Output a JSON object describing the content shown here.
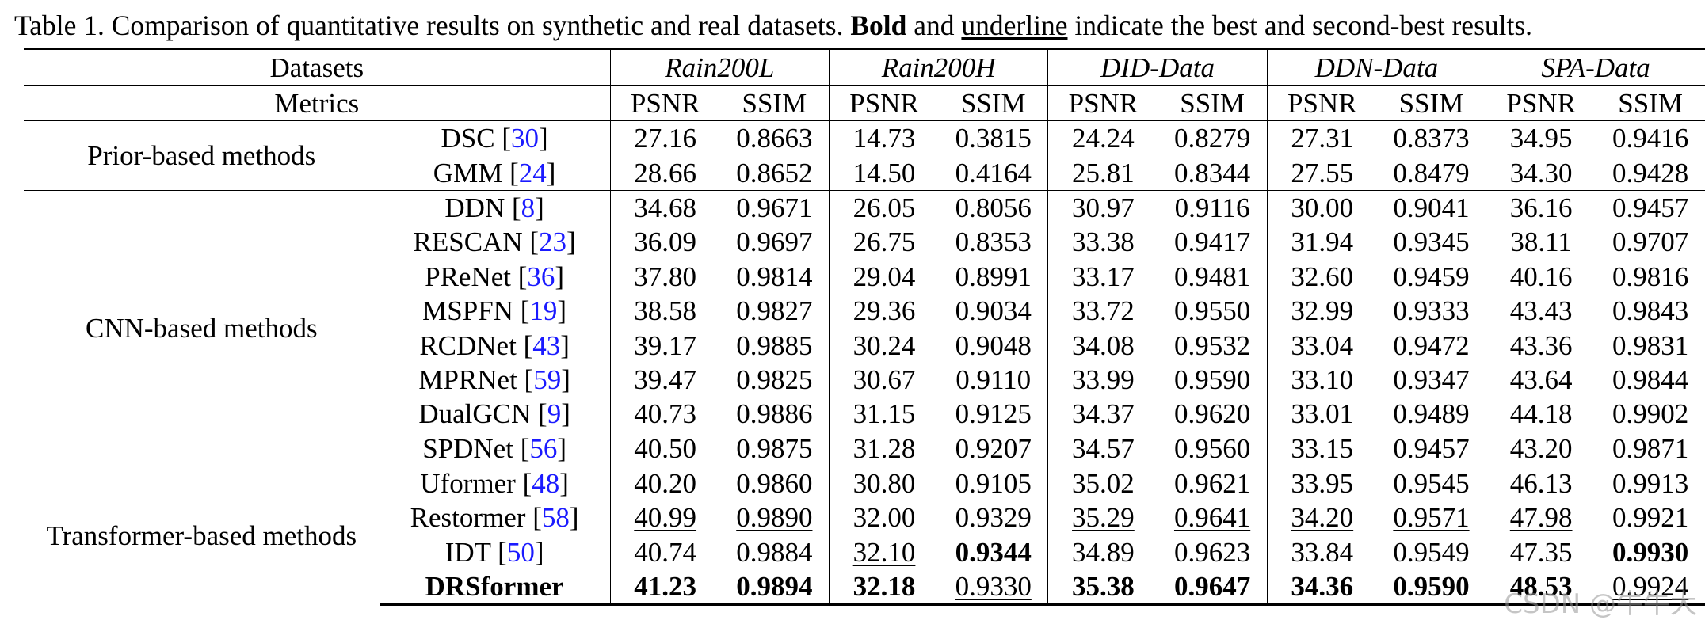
{
  "caption": {
    "prefix": "Table 1. Comparison of quantitative results on synthetic and real datasets. ",
    "bold_word": "Bold",
    "middle": " and ",
    "underline_word": "underline",
    "suffix": " indicate the best and second-best results."
  },
  "header": {
    "datasets_label": "Datasets",
    "metrics_label": "Metrics",
    "datasets": [
      "Rain200L",
      "Rain200H",
      "DID-Data",
      "DDN-Data",
      "SPA-Data"
    ],
    "metric_names": [
      "PSNR",
      "SSIM"
    ]
  },
  "groups": [
    {
      "name": "Prior-based methods",
      "methods": [
        {
          "name": "DSC",
          "ref": "30",
          "values": [
            {
              "v": "27.16"
            },
            {
              "v": "0.8663"
            },
            {
              "v": "14.73"
            },
            {
              "v": "0.3815"
            },
            {
              "v": "24.24"
            },
            {
              "v": "0.8279"
            },
            {
              "v": "27.31"
            },
            {
              "v": "0.8373"
            },
            {
              "v": "34.95"
            },
            {
              "v": "0.9416"
            }
          ]
        },
        {
          "name": "GMM",
          "ref": "24",
          "values": [
            {
              "v": "28.66"
            },
            {
              "v": "0.8652"
            },
            {
              "v": "14.50"
            },
            {
              "v": "0.4164"
            },
            {
              "v": "25.81"
            },
            {
              "v": "0.8344"
            },
            {
              "v": "27.55"
            },
            {
              "v": "0.8479"
            },
            {
              "v": "34.30"
            },
            {
              "v": "0.9428"
            }
          ]
        }
      ]
    },
    {
      "name": "CNN-based methods",
      "methods": [
        {
          "name": "DDN",
          "ref": "8",
          "values": [
            {
              "v": "34.68"
            },
            {
              "v": "0.9671"
            },
            {
              "v": "26.05"
            },
            {
              "v": "0.8056"
            },
            {
              "v": "30.97"
            },
            {
              "v": "0.9116"
            },
            {
              "v": "30.00"
            },
            {
              "v": "0.9041"
            },
            {
              "v": "36.16"
            },
            {
              "v": "0.9457"
            }
          ]
        },
        {
          "name": "RESCAN",
          "ref": "23",
          "values": [
            {
              "v": "36.09"
            },
            {
              "v": "0.9697"
            },
            {
              "v": "26.75"
            },
            {
              "v": "0.8353"
            },
            {
              "v": "33.38"
            },
            {
              "v": "0.9417"
            },
            {
              "v": "31.94"
            },
            {
              "v": "0.9345"
            },
            {
              "v": "38.11"
            },
            {
              "v": "0.9707"
            }
          ]
        },
        {
          "name": "PReNet",
          "ref": "36",
          "values": [
            {
              "v": "37.80"
            },
            {
              "v": "0.9814"
            },
            {
              "v": "29.04"
            },
            {
              "v": "0.8991"
            },
            {
              "v": "33.17"
            },
            {
              "v": "0.9481"
            },
            {
              "v": "32.60"
            },
            {
              "v": "0.9459"
            },
            {
              "v": "40.16"
            },
            {
              "v": "0.9816"
            }
          ]
        },
        {
          "name": "MSPFN",
          "ref": "19",
          "values": [
            {
              "v": "38.58"
            },
            {
              "v": "0.9827"
            },
            {
              "v": "29.36"
            },
            {
              "v": "0.9034"
            },
            {
              "v": "33.72"
            },
            {
              "v": "0.9550"
            },
            {
              "v": "32.99"
            },
            {
              "v": "0.9333"
            },
            {
              "v": "43.43"
            },
            {
              "v": "0.9843"
            }
          ]
        },
        {
          "name": "RCDNet",
          "ref": "43",
          "values": [
            {
              "v": "39.17"
            },
            {
              "v": "0.9885"
            },
            {
              "v": "30.24"
            },
            {
              "v": "0.9048"
            },
            {
              "v": "34.08"
            },
            {
              "v": "0.9532"
            },
            {
              "v": "33.04"
            },
            {
              "v": "0.9472"
            },
            {
              "v": "43.36"
            },
            {
              "v": "0.9831"
            }
          ]
        },
        {
          "name": "MPRNet",
          "ref": "59",
          "values": [
            {
              "v": "39.47"
            },
            {
              "v": "0.9825"
            },
            {
              "v": "30.67"
            },
            {
              "v": "0.9110"
            },
            {
              "v": "33.99"
            },
            {
              "v": "0.9590"
            },
            {
              "v": "33.10"
            },
            {
              "v": "0.9347"
            },
            {
              "v": "43.64"
            },
            {
              "v": "0.9844"
            }
          ]
        },
        {
          "name": "DualGCN",
          "ref": "9",
          "values": [
            {
              "v": "40.73"
            },
            {
              "v": "0.9886"
            },
            {
              "v": "31.15"
            },
            {
              "v": "0.9125"
            },
            {
              "v": "34.37"
            },
            {
              "v": "0.9620"
            },
            {
              "v": "33.01"
            },
            {
              "v": "0.9489"
            },
            {
              "v": "44.18"
            },
            {
              "v": "0.9902"
            }
          ]
        },
        {
          "name": "SPDNet",
          "ref": "56",
          "values": [
            {
              "v": "40.50"
            },
            {
              "v": "0.9875"
            },
            {
              "v": "31.28"
            },
            {
              "v": "0.9207"
            },
            {
              "v": "34.57"
            },
            {
              "v": "0.9560"
            },
            {
              "v": "33.15"
            },
            {
              "v": "0.9457"
            },
            {
              "v": "43.20"
            },
            {
              "v": "0.9871"
            }
          ]
        }
      ]
    },
    {
      "name": "Transformer-based methods",
      "methods": [
        {
          "name": "Uformer",
          "ref": "48",
          "values": [
            {
              "v": "40.20"
            },
            {
              "v": "0.9860"
            },
            {
              "v": "30.80"
            },
            {
              "v": "0.9105"
            },
            {
              "v": "35.02"
            },
            {
              "v": "0.9621"
            },
            {
              "v": "33.95"
            },
            {
              "v": "0.9545"
            },
            {
              "v": "46.13"
            },
            {
              "v": "0.9913"
            }
          ]
        },
        {
          "name": "Restormer",
          "ref": "58",
          "values": [
            {
              "v": "40.99",
              "ul": true
            },
            {
              "v": "0.9890",
              "ul": true
            },
            {
              "v": "32.00"
            },
            {
              "v": "0.9329"
            },
            {
              "v": "35.29",
              "ul": true
            },
            {
              "v": "0.9641",
              "ul": true
            },
            {
              "v": "34.20",
              "ul": true
            },
            {
              "v": "0.9571",
              "ul": true
            },
            {
              "v": "47.98",
              "ul": true
            },
            {
              "v": "0.9921"
            }
          ]
        },
        {
          "name": "IDT",
          "ref": "50",
          "values": [
            {
              "v": "40.74"
            },
            {
              "v": "0.9884"
            },
            {
              "v": "32.10",
              "ul": true
            },
            {
              "v": "0.9344",
              "bold": true
            },
            {
              "v": "34.89"
            },
            {
              "v": "0.9623"
            },
            {
              "v": "33.84"
            },
            {
              "v": "0.9549"
            },
            {
              "v": "47.35"
            },
            {
              "v": "0.9930",
              "bold": true
            }
          ]
        },
        {
          "name": "DRSformer",
          "ref": "",
          "bold_name": true,
          "values": [
            {
              "v": "41.23",
              "bold": true
            },
            {
              "v": "0.9894",
              "bold": true
            },
            {
              "v": "32.18",
              "bold": true
            },
            {
              "v": "0.9330",
              "ul": true
            },
            {
              "v": "35.38",
              "bold": true
            },
            {
              "v": "0.9647",
              "bold": true
            },
            {
              "v": "34.36",
              "bold": true
            },
            {
              "v": "0.9590",
              "bold": true
            },
            {
              "v": "48.53",
              "bold": true
            },
            {
              "v": "0.9924",
              "ul": true
            }
          ]
        }
      ]
    }
  ],
  "watermark": "CSDN @牛牛大"
}
